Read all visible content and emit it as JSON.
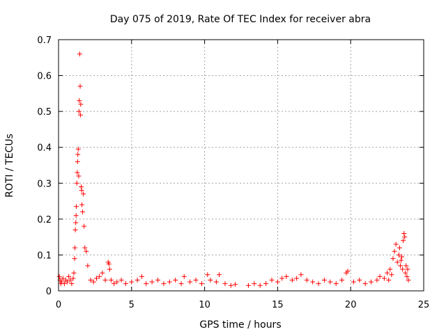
{
  "chart_data": {
    "type": "scatter",
    "title": "Day 075 of 2019, Rate Of TEC Index for receiver abra",
    "xlabel": "GPS time / hours",
    "ylabel": "ROTI / TECUs",
    "xlim": [
      0,
      25
    ],
    "ylim": [
      0,
      0.7
    ],
    "xticks": [
      "0",
      "5",
      "10",
      "15",
      "20",
      "25"
    ],
    "yticks": [
      "0",
      "0.1",
      "0.2",
      "0.3",
      "0.4",
      "0.5",
      "0.6",
      "0.7"
    ],
    "grid": true,
    "marker": "+",
    "color": "#ff0000",
    "series": [
      {
        "name": "ROTI",
        "x": [
          0.05,
          0.1,
          0.15,
          0.2,
          0.3,
          0.4,
          0.5,
          0.6,
          0.7,
          0.8,
          0.9,
          1.0,
          1.05,
          1.1,
          1.12,
          1.15,
          1.18,
          1.2,
          1.22,
          1.25,
          1.28,
          1.3,
          1.32,
          1.35,
          1.38,
          1.4,
          1.42,
          1.45,
          1.48,
          1.5,
          1.52,
          1.55,
          1.58,
          1.6,
          1.65,
          1.7,
          1.75,
          1.8,
          1.9,
          2.0,
          2.2,
          2.4,
          2.6,
          2.8,
          3.0,
          3.2,
          3.4,
          3.45,
          3.5,
          3.6,
          3.8,
          4.0,
          4.3,
          4.6,
          5.0,
          5.4,
          5.7,
          6.0,
          6.4,
          6.8,
          7.2,
          7.6,
          8.0,
          8.4,
          8.6,
          9.0,
          9.4,
          9.8,
          10.2,
          10.4,
          10.8,
          11.0,
          11.4,
          11.8,
          12.1,
          13.0,
          13.4,
          13.8,
          14.2,
          14.6,
          15.0,
          15.3,
          15.6,
          16.0,
          16.3,
          16.6,
          17.0,
          17.4,
          17.8,
          18.2,
          18.6,
          19.0,
          19.4,
          19.7,
          19.8,
          20.2,
          20.6,
          21.0,
          21.4,
          21.8,
          22.0,
          22.3,
          22.5,
          22.6,
          22.7,
          22.8,
          22.9,
          23.0,
          23.1,
          23.2,
          23.3,
          23.35,
          23.4,
          23.45,
          23.5,
          23.55,
          23.6,
          23.65,
          23.7,
          23.75,
          23.8,
          23.85,
          23.9,
          23.95
        ],
        "y": [
          0.04,
          0.03,
          0.02,
          0.025,
          0.035,
          0.02,
          0.03,
          0.025,
          0.04,
          0.03,
          0.02,
          0.035,
          0.05,
          0.09,
          0.12,
          0.17,
          0.19,
          0.21,
          0.235,
          0.3,
          0.33,
          0.36,
          0.38,
          0.395,
          0.32,
          0.5,
          0.53,
          0.66,
          0.57,
          0.49,
          0.52,
          0.29,
          0.28,
          0.24,
          0.22,
          0.27,
          0.18,
          0.12,
          0.11,
          0.07,
          0.03,
          0.025,
          0.035,
          0.04,
          0.05,
          0.03,
          0.08,
          0.075,
          0.06,
          0.03,
          0.02,
          0.025,
          0.03,
          0.02,
          0.025,
          0.03,
          0.04,
          0.02,
          0.025,
          0.03,
          0.02,
          0.025,
          0.03,
          0.02,
          0.04,
          0.025,
          0.03,
          0.02,
          0.045,
          0.03,
          0.025,
          0.045,
          0.02,
          0.015,
          0.018,
          0.015,
          0.02,
          0.015,
          0.02,
          0.03,
          0.025,
          0.035,
          0.04,
          0.03,
          0.035,
          0.045,
          0.03,
          0.025,
          0.02,
          0.03,
          0.025,
          0.02,
          0.03,
          0.05,
          0.055,
          0.025,
          0.03,
          0.02,
          0.025,
          0.03,
          0.04,
          0.035,
          0.05,
          0.03,
          0.06,
          0.045,
          0.09,
          0.11,
          0.13,
          0.08,
          0.1,
          0.12,
          0.07,
          0.085,
          0.095,
          0.06,
          0.14,
          0.16,
          0.15,
          0.05,
          0.07,
          0.04,
          0.06,
          0.03
        ]
      }
    ]
  }
}
